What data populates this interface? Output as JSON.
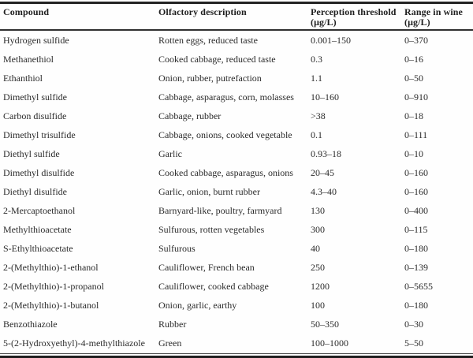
{
  "table": {
    "columns": [
      {
        "label": "Compound",
        "unit": ""
      },
      {
        "label": "Olfactory description",
        "unit": ""
      },
      {
        "label": "Perception threshold",
        "unit": "(μg/L)"
      },
      {
        "label": "Range in wine",
        "unit": "(μg/L)"
      }
    ],
    "rows": [
      {
        "compound": "Hydrogen sulfide",
        "olfactory": "Rotten eggs, reduced taste",
        "threshold": "0.001–150",
        "range": "0–370"
      },
      {
        "compound": "Methanethiol",
        "olfactory": "Cooked cabbage, reduced taste",
        "threshold": "0.3",
        "range": "0–16"
      },
      {
        "compound": "Ethanthiol",
        "olfactory": "Onion, rubber, putrefaction",
        "threshold": "1.1",
        "range": "0–50"
      },
      {
        "compound": "Dimethyl sulfide",
        "olfactory": "Cabbage, asparagus, corn, molasses",
        "threshold": "10–160",
        "range": "0–910"
      },
      {
        "compound": "Carbon disulfide",
        "olfactory": "Cabbage, rubber",
        "threshold": ">38",
        "range": "0–18"
      },
      {
        "compound": "Dimethyl trisulfide",
        "olfactory": "Cabbage, onions, cooked vegetable",
        "threshold": "0.1",
        "range": "0–111"
      },
      {
        "compound": "Diethyl sulfide",
        "olfactory": "Garlic",
        "threshold": "0.93–18",
        "range": "0–10"
      },
      {
        "compound": "Dimethyl disulfide",
        "olfactory": "Cooked cabbage, asparagus, onions",
        "threshold": "20–45",
        "range": "0–160"
      },
      {
        "compound": "Diethyl disulfide",
        "olfactory": "Garlic, onion, burnt rubber",
        "threshold": "4.3–40",
        "range": "0–160"
      },
      {
        "compound": "2-Mercaptoethanol",
        "olfactory": "Barnyard-like, poultry, farmyard",
        "threshold": "130",
        "range": "0–400"
      },
      {
        "compound": "Methylthioacetate",
        "olfactory": "Sulfurous, rotten vegetables",
        "threshold": "300",
        "range": "0–115"
      },
      {
        "compound": "S-Ethylthioacetate",
        "olfactory": "Sulfurous",
        "threshold": "40",
        "range": "0–180"
      },
      {
        "compound": "2-(Methylthio)-1-ethanol",
        "olfactory": "Cauliflower, French bean",
        "threshold": "250",
        "range": "0–139"
      },
      {
        "compound": "2-(Methylthio)-1-propanol",
        "olfactory": "Cauliflower, cooked cabbage",
        "threshold": "1200",
        "range": "0–5655"
      },
      {
        "compound": "2-(Methylthio)-1-butanol",
        "olfactory": "Onion, garlic, earthy",
        "threshold": "100",
        "range": "0–180"
      },
      {
        "compound": "Benzothiazole",
        "olfactory": "Rubber",
        "threshold": "50–350",
        "range": "0–30"
      },
      {
        "compound": "5-(2-Hydroxyethyl)-4-methylthiazole",
        "olfactory": "Green",
        "threshold": "100–1000",
        "range": "5–50"
      }
    ]
  }
}
